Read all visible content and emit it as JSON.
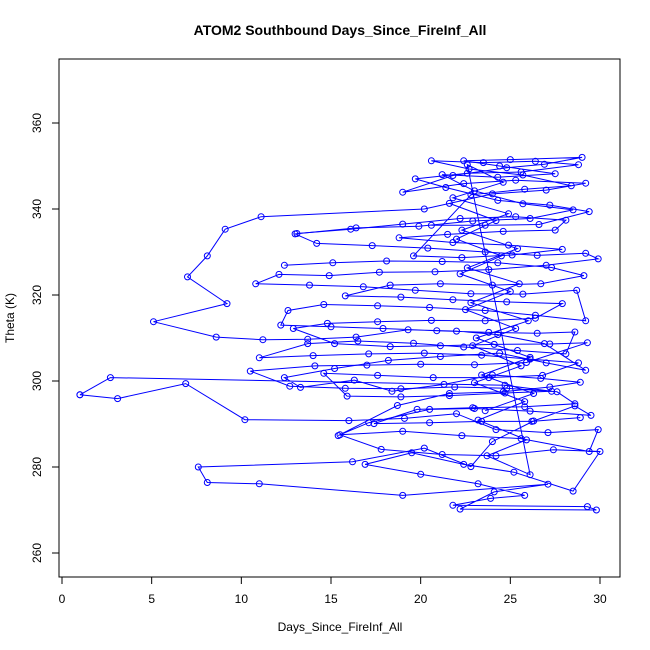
{
  "chart_data": {
    "type": "line",
    "title": "ATOM2 Southbound Days_Since_FireInf_All",
    "xlabel": "Days_Since_FireInf_All",
    "ylabel": "Theta (K)",
    "xlim": [
      0,
      30
    ],
    "ylim": [
      255,
      375
    ],
    "xticks": [
      0,
      5,
      10,
      15,
      20,
      25,
      30
    ],
    "yticks": [
      260,
      280,
      300,
      320,
      340,
      360
    ],
    "markers": "open-circle",
    "grid": false,
    "legend": "none",
    "color": "#0000ff",
    "series": [
      {
        "values": [
          [
            1.0,
            296.8
          ],
          [
            3.1,
            295.9
          ],
          [
            6.9,
            299.4
          ],
          [
            10.2,
            291.0
          ],
          [
            16.0,
            290.8
          ],
          [
            19.1,
            291.3
          ],
          [
            22.0,
            292.4
          ],
          [
            24.2,
            288.7
          ],
          [
            27.1,
            288.0
          ],
          [
            29.9,
            288.7
          ],
          [
            29.4,
            283.6
          ],
          [
            25.6,
            286.6
          ],
          [
            22.3,
            287.3
          ],
          [
            19.0,
            288.3
          ],
          [
            15.5,
            287.5
          ],
          [
            17.8,
            284.1
          ],
          [
            21.2,
            282.9
          ],
          [
            24.2,
            282.6
          ],
          [
            27.4,
            284.0
          ],
          [
            30.0,
            283.6
          ],
          [
            28.5,
            274.4
          ],
          [
            25.2,
            278.8
          ],
          [
            22.4,
            280.6
          ],
          [
            19.5,
            283.3
          ],
          [
            16.9,
            280.6
          ],
          [
            20.0,
            278.3
          ],
          [
            23.2,
            276.1
          ],
          [
            25.8,
            273.4
          ],
          [
            23.9,
            272.7
          ],
          [
            21.8,
            271.1
          ],
          [
            29.3,
            270.8
          ],
          [
            29.8,
            270.0
          ],
          [
            22.2,
            270.2
          ],
          [
            24.1,
            274.2
          ],
          [
            27.1,
            276.0
          ],
          [
            19.0,
            273.4
          ],
          [
            11.0,
            276.1
          ],
          [
            8.1,
            276.4
          ],
          [
            7.6,
            280.0
          ],
          [
            16.2,
            281.2
          ],
          [
            20.2,
            284.4
          ],
          [
            22.8,
            280.1
          ],
          [
            24.0,
            285.9
          ],
          [
            26.3,
            290.7
          ],
          [
            28.6,
            294.2
          ],
          [
            29.5,
            292.0
          ],
          [
            26.1,
            293.0
          ],
          [
            23.0,
            293.6
          ],
          [
            20.5,
            293.4
          ],
          [
            17.1,
            290.3
          ],
          [
            15.4,
            287.3
          ],
          [
            18.7,
            294.3
          ],
          [
            21.6,
            297.1
          ],
          [
            24.6,
            297.5
          ],
          [
            27.2,
            298.6
          ],
          [
            28.9,
            299.7
          ],
          [
            26.7,
            300.6
          ],
          [
            24.0,
            301.4
          ],
          [
            21.3,
            299.2
          ],
          [
            18.4,
            297.6
          ],
          [
            16.3,
            300.2
          ],
          [
            13.3,
            298.5
          ],
          [
            12.4,
            300.8
          ],
          [
            15.2,
            302.9
          ],
          [
            18.2,
            304.8
          ],
          [
            21.1,
            305.7
          ],
          [
            24.4,
            306.5
          ],
          [
            27.0,
            304.2
          ],
          [
            29.2,
            302.5
          ],
          [
            26.9,
            308.7
          ],
          [
            24.3,
            310.8
          ],
          [
            22.0,
            311.6
          ],
          [
            19.3,
            311.9
          ],
          [
            16.4,
            310.2
          ],
          [
            13.7,
            309.7
          ],
          [
            11.2,
            309.6
          ],
          [
            8.6,
            310.2
          ],
          [
            5.1,
            313.8
          ],
          [
            9.2,
            318.0
          ],
          [
            7.0,
            324.2
          ],
          [
            8.1,
            329.1
          ],
          [
            9.1,
            335.3
          ],
          [
            11.1,
            338.2
          ],
          [
            20.2,
            340.0
          ],
          [
            24.0,
            343.5
          ],
          [
            27.0,
            344.4
          ],
          [
            29.2,
            346.0
          ],
          [
            25.3,
            346.7
          ],
          [
            22.4,
            345.9
          ],
          [
            19.0,
            343.9
          ],
          [
            21.8,
            347.8
          ],
          [
            24.8,
            349.6
          ],
          [
            26.9,
            350.4
          ],
          [
            29.0,
            352.0
          ],
          [
            25.0,
            351.5
          ],
          [
            22.4,
            351.2
          ],
          [
            24.4,
            350.0
          ],
          [
            27.5,
            348.2
          ],
          [
            24.3,
            347.4
          ],
          [
            21.2,
            348.0
          ],
          [
            23.0,
            344.2
          ],
          [
            25.7,
            341.2
          ],
          [
            28.5,
            339.8
          ],
          [
            26.1,
            337.8
          ],
          [
            22.9,
            337.2
          ],
          [
            19.9,
            336.0
          ],
          [
            16.4,
            335.6
          ],
          [
            13.0,
            334.2
          ],
          [
            14.2,
            332.0
          ],
          [
            17.3,
            331.5
          ],
          [
            20.4,
            330.9
          ],
          [
            23.6,
            330.0
          ],
          [
            26.5,
            329.2
          ],
          [
            29.2,
            329.7
          ],
          [
            29.9,
            328.4
          ],
          [
            27.0,
            326.9
          ],
          [
            23.8,
            325.9
          ],
          [
            20.8,
            325.4
          ],
          [
            17.7,
            325.3
          ],
          [
            14.9,
            324.5
          ],
          [
            12.1,
            324.8
          ],
          [
            10.8,
            322.6
          ],
          [
            13.8,
            322.3
          ],
          [
            16.8,
            321.9
          ],
          [
            19.7,
            321.1
          ],
          [
            22.8,
            320.3
          ],
          [
            25.7,
            320.2
          ],
          [
            28.7,
            321.1
          ],
          [
            29.2,
            314.0
          ],
          [
            26.4,
            315.3
          ],
          [
            23.6,
            316.4
          ],
          [
            20.5,
            317.1
          ],
          [
            17.6,
            317.5
          ],
          [
            14.6,
            317.8
          ],
          [
            12.6,
            316.4
          ],
          [
            12.2,
            313.0
          ],
          [
            15.0,
            312.6
          ],
          [
            17.9,
            312.2
          ],
          [
            20.9,
            311.7
          ],
          [
            23.8,
            311.3
          ],
          [
            26.5,
            311.1
          ],
          [
            28.6,
            311.4
          ],
          [
            28.1,
            306.3
          ],
          [
            25.4,
            307.1
          ],
          [
            22.4,
            307.9
          ],
          [
            19.6,
            308.8
          ],
          [
            16.5,
            309.3
          ],
          [
            13.7,
            308.7
          ],
          [
            11.0,
            305.4
          ],
          [
            14.0,
            305.9
          ],
          [
            17.1,
            306.3
          ],
          [
            20.2,
            306.5
          ],
          [
            23.4,
            306.0
          ],
          [
            26.1,
            305.1
          ],
          [
            28.8,
            304.2
          ],
          [
            26.8,
            301.3
          ],
          [
            23.8,
            300.8
          ],
          [
            20.7,
            300.8
          ],
          [
            17.6,
            301.3
          ],
          [
            14.6,
            301.8
          ],
          [
            15.9,
            296.5
          ],
          [
            18.9,
            296.3
          ],
          [
            21.6,
            296.6
          ],
          [
            24.7,
            297.2
          ],
          [
            27.3,
            297.6
          ],
          [
            24.7,
            299.0
          ],
          [
            2.7,
            300.8
          ],
          [
            1.0,
            296.8
          ]
        ]
      },
      {
        "values": [
          [
            12.4,
            326.9
          ],
          [
            15.1,
            327.5
          ],
          [
            18.1,
            327.9
          ],
          [
            21.2,
            327.8
          ],
          [
            24.3,
            327.5
          ],
          [
            27.3,
            326.4
          ],
          [
            29.1,
            324.5
          ],
          [
            26.7,
            322.6
          ],
          [
            24.0,
            322.3
          ],
          [
            21.1,
            322.6
          ],
          [
            18.3,
            322.3
          ],
          [
            15.8,
            319.8
          ],
          [
            18.9,
            319.5
          ],
          [
            21.8,
            318.9
          ],
          [
            24.8,
            318.4
          ],
          [
            27.9,
            318.0
          ],
          [
            26.4,
            314.6
          ],
          [
            23.6,
            314.0
          ],
          [
            20.6,
            314.1
          ],
          [
            17.6,
            313.8
          ],
          [
            14.8,
            313.4
          ],
          [
            12.9,
            312.2
          ],
          [
            15.2,
            308.7
          ],
          [
            18.3,
            308.0
          ],
          [
            21.1,
            308.2
          ],
          [
            24.1,
            308.5
          ],
          [
            27.2,
            308.6
          ],
          [
            29.3,
            308.9
          ],
          [
            25.9,
            304.3
          ],
          [
            23.0,
            303.8
          ],
          [
            20.0,
            303.9
          ],
          [
            17.0,
            303.7
          ],
          [
            14.1,
            303.5
          ],
          [
            10.5,
            302.3
          ],
          [
            12.7,
            298.8
          ],
          [
            15.8,
            298.3
          ],
          [
            18.9,
            298.2
          ],
          [
            21.9,
            298.6
          ],
          [
            24.8,
            298.3
          ],
          [
            27.6,
            297.5
          ],
          [
            28.6,
            294.7
          ],
          [
            25.8,
            294.0
          ],
          [
            22.9,
            293.8
          ],
          [
            19.8,
            293.4
          ],
          [
            17.4,
            290.1
          ],
          [
            20.5,
            290.3
          ],
          [
            23.4,
            290.6
          ],
          [
            26.2,
            290.6
          ],
          [
            28.9,
            291.5
          ]
        ]
      },
      {
        "values": [
          [
            13.1,
            334.3
          ],
          [
            16.1,
            335.3
          ],
          [
            19.0,
            336.5
          ],
          [
            22.2,
            337.8
          ],
          [
            25.3,
            338.2
          ],
          [
            28.1,
            337.4
          ],
          [
            27.5,
            335.1
          ],
          [
            24.6,
            334.8
          ],
          [
            21.5,
            334.1
          ],
          [
            18.8,
            333.3
          ],
          [
            21.8,
            332.2
          ],
          [
            24.9,
            331.6
          ],
          [
            27.9,
            330.6
          ],
          [
            25.1,
            329.3
          ],
          [
            22.3,
            328.7
          ],
          [
            19.6,
            329.1
          ],
          [
            22.8,
            343.3
          ],
          [
            25.8,
            344.6
          ],
          [
            28.4,
            345.4
          ],
          [
            25.7,
            347.9
          ],
          [
            22.7,
            349.3
          ],
          [
            20.6,
            351.2
          ],
          [
            23.5,
            350.8
          ],
          [
            26.4,
            351.1
          ],
          [
            28.8,
            350.3
          ],
          [
            25.6,
            348.6
          ],
          [
            22.6,
            348.3
          ],
          [
            19.7,
            347.0
          ],
          [
            21.4,
            345.0
          ],
          [
            24.3,
            342.0
          ],
          [
            27.2,
            340.9
          ],
          [
            29.4,
            339.4
          ],
          [
            26.6,
            336.4
          ],
          [
            23.6,
            336.2
          ],
          [
            20.6,
            336.2
          ]
        ]
      },
      {
        "values": [
          [
            21.6,
            341.3
          ],
          [
            24.2,
            337.3
          ],
          [
            22.0,
            333.0
          ],
          [
            24.5,
            329.1
          ],
          [
            22.2,
            324.9
          ],
          [
            25.0,
            320.8
          ],
          [
            22.5,
            316.6
          ],
          [
            25.3,
            312.2
          ],
          [
            22.9,
            308.2
          ],
          [
            25.6,
            303.5
          ],
          [
            23.0,
            299.6
          ],
          [
            25.8,
            295.2
          ],
          [
            23.2,
            290.9
          ],
          [
            25.9,
            286.3
          ],
          [
            23.7,
            282.6
          ],
          [
            26.1,
            278.2
          ],
          [
            22.6,
            350.3
          ],
          [
            24.6,
            346.2
          ],
          [
            21.8,
            342.6
          ],
          [
            24.9,
            338.9
          ],
          [
            22.3,
            335.1
          ],
          [
            25.4,
            330.8
          ],
          [
            22.6,
            326.3
          ],
          [
            25.5,
            322.6
          ],
          [
            22.8,
            318.2
          ],
          [
            26.0,
            314.0
          ],
          [
            23.1,
            310.0
          ],
          [
            26.1,
            305.5
          ],
          [
            23.4,
            301.4
          ],
          [
            26.3,
            297.1
          ],
          [
            23.6,
            293.1
          ]
        ]
      }
    ]
  }
}
